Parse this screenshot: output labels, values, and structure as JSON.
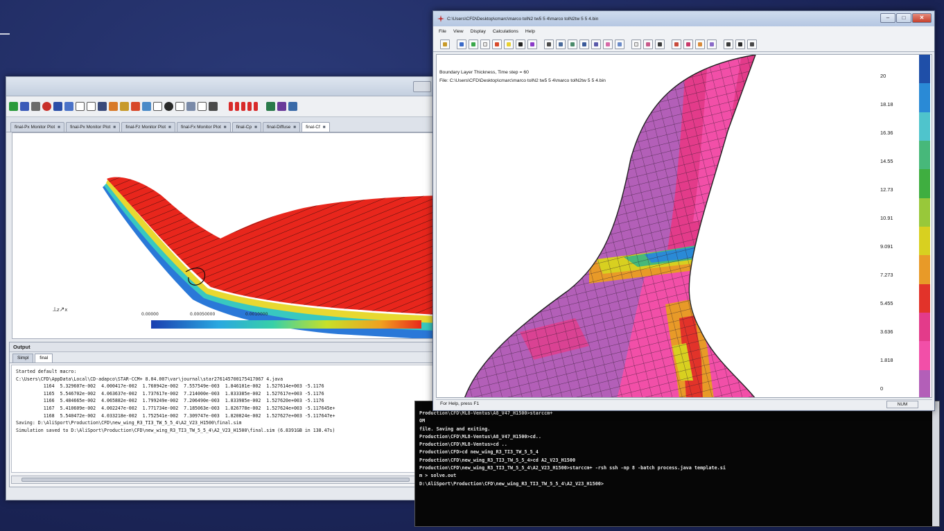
{
  "left_window": {
    "tabs": [
      {
        "label": "final-Px Monitor Plot",
        "active": false
      },
      {
        "label": "final-Px Monitor Plot",
        "active": false
      },
      {
        "label": "final-Fz Monitor Plot",
        "active": false
      },
      {
        "label": "final-Fx Monitor Plot",
        "active": false
      },
      {
        "label": "final-Cp",
        "active": false
      },
      {
        "label": "final-Diffuse",
        "active": false
      },
      {
        "label": "final-Cf",
        "active": true
      }
    ],
    "colorbar_labels": [
      "0.00000",
      "0.00050000",
      "0.0010000"
    ],
    "output": {
      "header": "Output",
      "tabs": [
        "Simpl",
        "final"
      ],
      "lines": [
        "Started default macro:",
        "C:\\Users\\CFD\\AppData\\Local\\CD-adapco\\STAR-CCM+ 8.04.007\\var\\journal\\star276145700175417067 4.java",
        "          1164  5.329607e-002  4.000417e-002  1.760942e-002  7.557549e-003  1.846101e-002  1.527614e+003 -5.1176",
        "          1165  5.546702e-002  4.063637e-002  1.737617e-002  7.214000e-003  1.833385e-002  1.527617e+003 -5.1176",
        "          1166  5.484665e-002  4.065882e-002  1.799249e-002  7.206490e-003  1.833985e-002  1.527620e+003 -5.1176",
        "          1167  5.410609e-002  4.002247e-002  1.771734e-002  7.185063e-003  1.826778e-002  1.527624e+003 -5.117645e+",
        "          1168  5.540472e-002  4.033218e-002  1.752541e-002  7.309747e-003  1.820024e-002  1.527627e+003 -5.117647e+",
        "Saving: D:\\AliSport\\Production\\CFD\\new_wing_R3_TI3_TW_5_5_4\\A2_V23_H1500\\final.sim",
        "Simulation saved to D:\\AliSport\\Production\\CFD\\new_wing_R3_TI3_TW_5_5_4\\A2_V23_H1500\\final.sim (6.8391GB in 138.47s)"
      ]
    }
  },
  "console": {
    "lines": [
      "Production\\CFD\\ML8-Ventus\\A8_V47_H1500>starccm+",
      "OM",
      "file. Saving and exiting.",
      "",
      "Production\\CFD\\ML8-Ventus\\A8_V47_H1500>cd..",
      "",
      "Production\\CFD\\ML8-Ventus>cd ..",
      "",
      "Production\\CFD>cd new_wing_R3_TI3_TW_5_5_4",
      "",
      "Production\\CFD\\new_wing_R3_TI3_TW_5_5_4>cd A2_V23_H1500",
      "",
      "Production\\CFD\\new_wing_R3_TI3_TW_5_5_4\\A2_V23_H1500>starccm+ -rsh ssh -np 8 -batch process.java template.si",
      "m > solve.out",
      "",
      "D:\\AliSport\\Production\\CFD\\new_wing_R3_TI3_TW_5_5_4\\A2_V23_H1500>"
    ]
  },
  "right_window": {
    "title": "C:\\Users\\CFD\\Desktop\\cmarc\\marco tolN2 tw5 5 4\\marco tolN2tw 5 5 4.bin",
    "menu": [
      "File",
      "View",
      "Display",
      "Calculations",
      "Help"
    ],
    "info_line1": "Boundary Layer Thickness, Time step = 60",
    "info_line2": "File: C:\\Users\\CFD\\Desktop\\cmarc\\marco tolN2 tw5 5 4\\marco tolN2tw 5 5 4.bin",
    "legend_values": [
      "20",
      "18.18",
      "16.36",
      "14.55",
      "12.73",
      "10.91",
      "9.091",
      "7.273",
      "5.455",
      "3.636",
      "1.818",
      "0"
    ],
    "legend_colors": [
      "#1f4fa8",
      "#2a8ad6",
      "#4fc4cc",
      "#47b87a",
      "#3fae40",
      "#98c83a",
      "#d8d020",
      "#e89a28",
      "#e2332a",
      "#e33b8a",
      "#f24fa8",
      "#b35fb8"
    ],
    "status": "For Help, press F1",
    "status_mode": "NUM"
  }
}
